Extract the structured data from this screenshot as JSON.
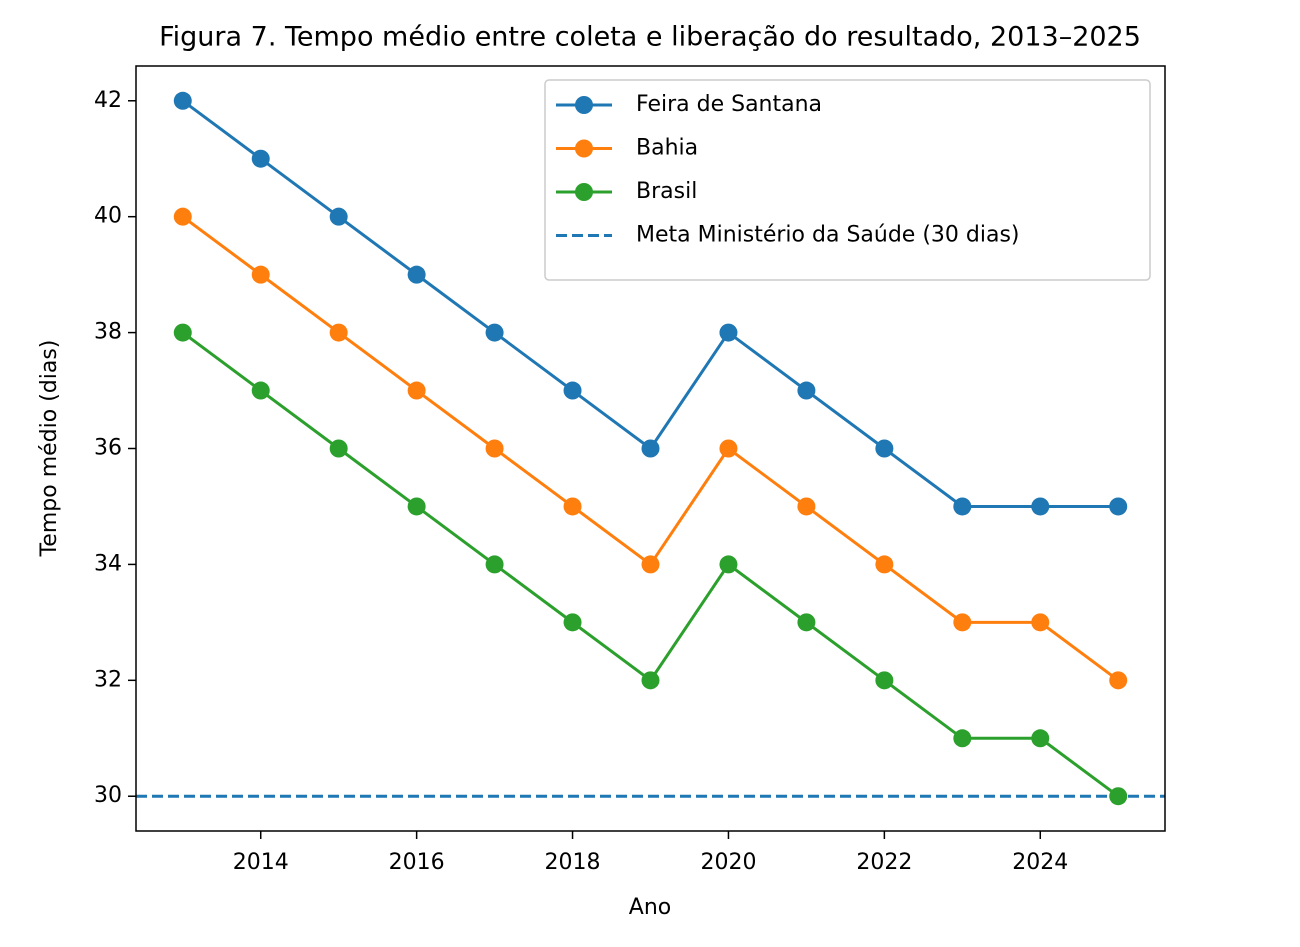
{
  "chart_data": {
    "type": "line",
    "title": "Figura 7. Tempo médio entre coleta e liberação do resultado, 2013–2025",
    "x_label": "Ano",
    "y_label": "Tempo médio (dias)",
    "x": [
      2013,
      2014,
      2015,
      2016,
      2017,
      2018,
      2019,
      2020,
      2021,
      2022,
      2023,
      2024,
      2025
    ],
    "series": [
      {
        "name": "Feira de Santana",
        "color": "#1f77b4",
        "values": [
          42,
          41,
          40,
          39,
          38,
          37,
          36,
          38,
          37,
          36,
          35,
          35,
          35
        ]
      },
      {
        "name": "Bahia",
        "color": "#ff7f0e",
        "values": [
          40,
          39,
          38,
          37,
          36,
          35,
          34,
          36,
          35,
          34,
          33,
          33,
          32
        ]
      },
      {
        "name": "Brasil",
        "color": "#2ca02c",
        "values": [
          38,
          37,
          36,
          35,
          34,
          33,
          32,
          34,
          33,
          32,
          31,
          31,
          30
        ]
      }
    ],
    "hlines": [
      {
        "value": 30,
        "label": "Meta Ministério da Saúde (30 dias)",
        "color": "#1f77b4",
        "style": "dashed"
      }
    ],
    "xlim": [
      2012.4,
      2025.6
    ],
    "ylim": [
      29.4,
      42.6
    ],
    "xticks": [
      2014,
      2016,
      2018,
      2020,
      2022,
      2024
    ],
    "yticks": [
      30,
      32,
      34,
      36,
      38,
      40,
      42
    ],
    "grid": false,
    "legend": "upper right"
  }
}
